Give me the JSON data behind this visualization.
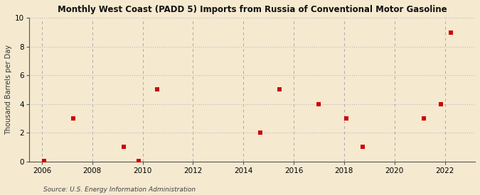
{
  "title": "Monthly West Coast (PADD 5) Imports from Russia of Conventional Motor Gasoline",
  "ylabel": "Thousand Barrels per Day",
  "source": "Source: U.S. Energy Information Administration",
  "background_color": "#f5e9d0",
  "plot_background_color": "#f5e9d0",
  "marker_color": "#cc0000",
  "marker_size": 4,
  "xlim": [
    2005.5,
    2023.2
  ],
  "ylim": [
    0,
    10
  ],
  "xticks": [
    2006,
    2008,
    2010,
    2012,
    2014,
    2016,
    2018,
    2020,
    2022
  ],
  "yticks": [
    0,
    2,
    4,
    6,
    8,
    10
  ],
  "grid_color_h": "#bbbbbb",
  "grid_color_v": "#aaaaaa",
  "data_x": [
    2006.08,
    2007.25,
    2009.25,
    2009.83,
    2010.58,
    2014.67,
    2015.42,
    2017.0,
    2018.08,
    2018.75,
    2021.17,
    2021.83,
    2022.25
  ],
  "data_y": [
    0.05,
    3.0,
    1.0,
    0.05,
    5.0,
    2.0,
    5.0,
    4.0,
    3.0,
    1.0,
    3.0,
    4.0,
    9.0
  ]
}
